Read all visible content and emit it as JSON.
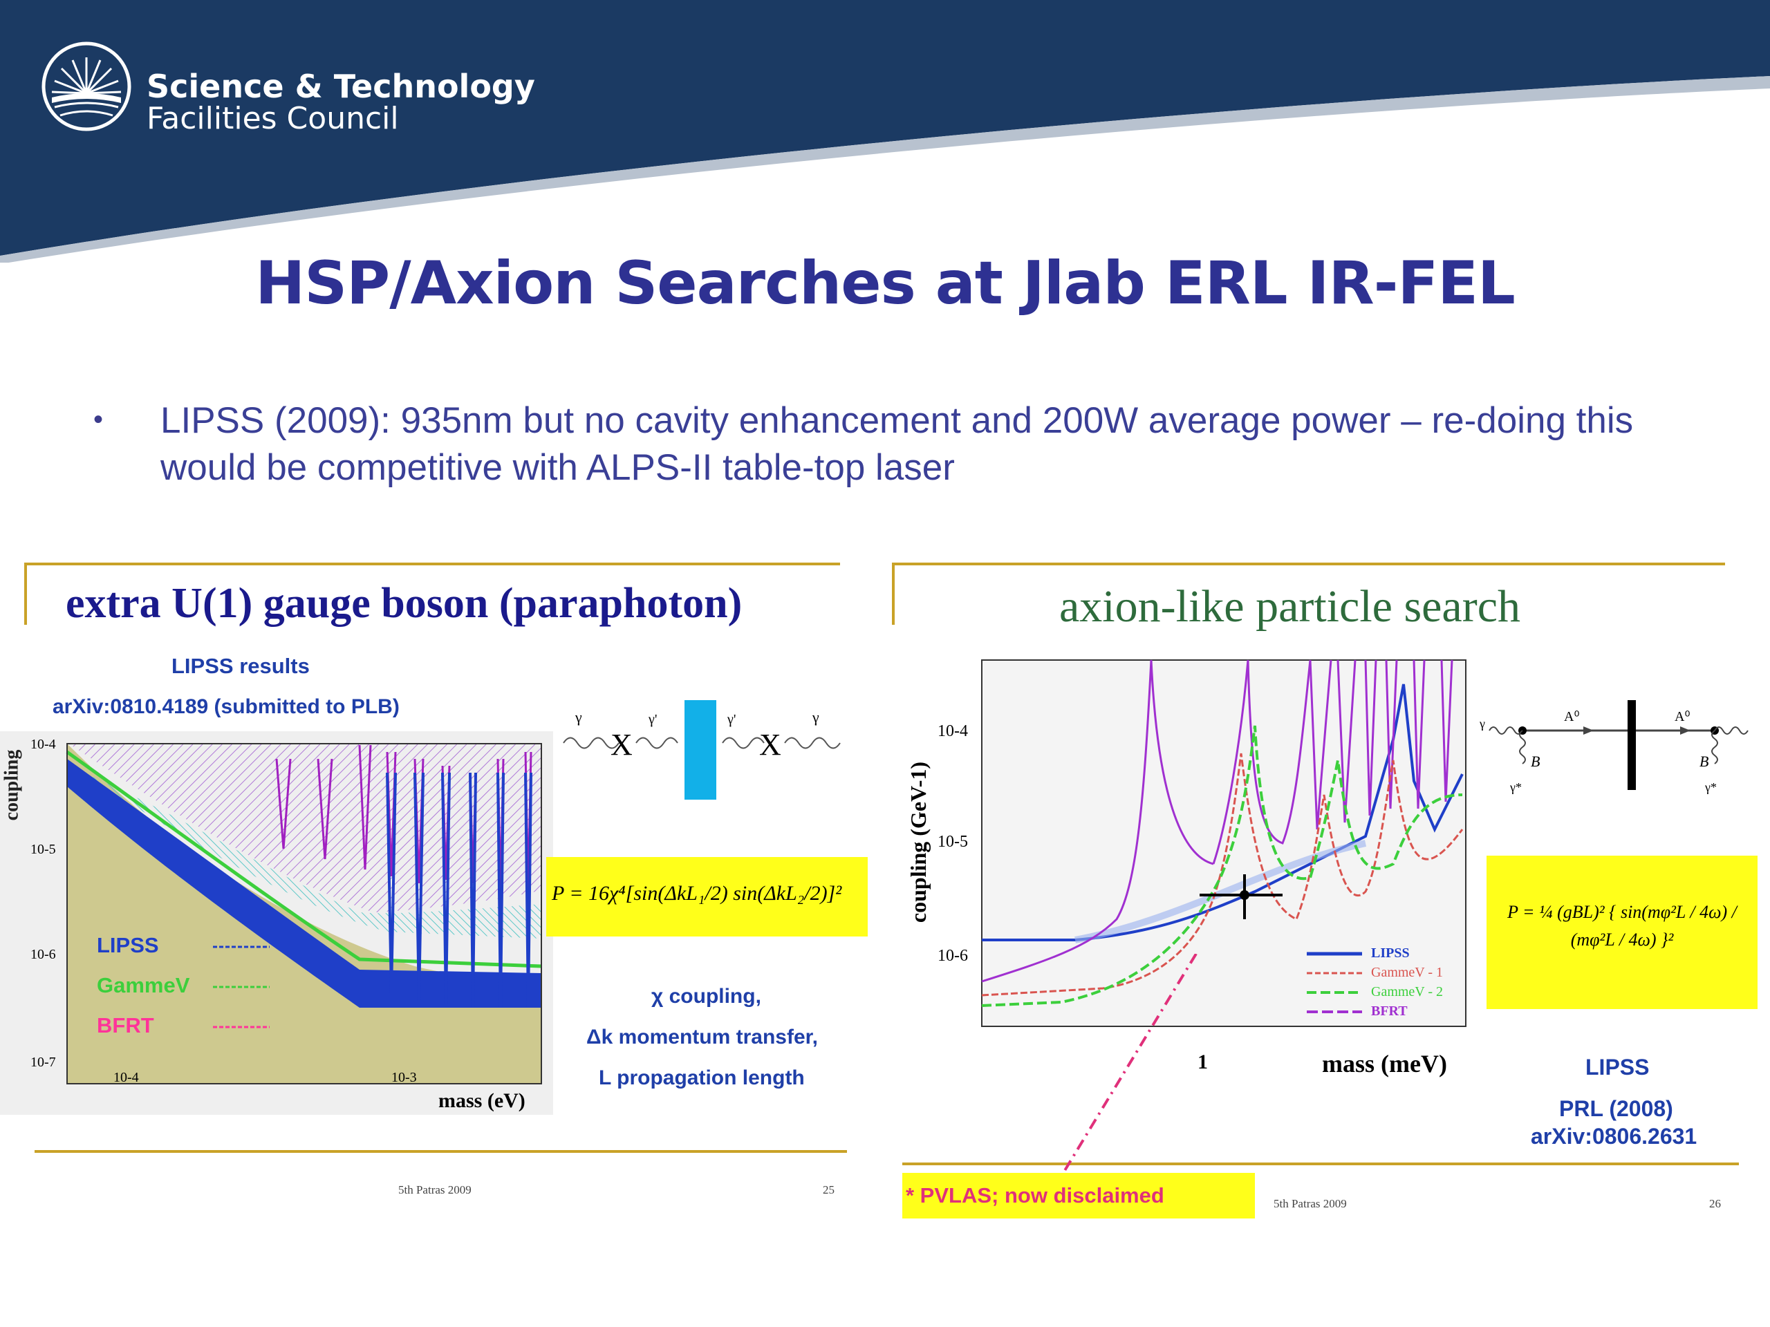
{
  "header": {
    "logo_line1": "Science & Technology",
    "logo_line2": "Facilities Council",
    "colors": {
      "navy": "#1b3a63",
      "title": "#2e3192"
    }
  },
  "title": "HSP/Axion Searches at Jlab ERL IR-FEL",
  "bullet": "LIPSS (2009): 935nm but no cavity enhancement and 200W average power – re-doing this would be competitive with ALPS-II table-top laser",
  "left_slide": {
    "heading": "extra U(1) gauge boson (paraphoton)",
    "results_label": "LIPSS results",
    "arxiv": "arXiv:0810.4189  (submitted to PLB)",
    "ylabel": "coupling",
    "xlabel": "mass (eV)",
    "yticks": [
      "10-4",
      "10-5",
      "10-6",
      "10-7"
    ],
    "xticks": [
      "10-4",
      "10-3"
    ],
    "legend": [
      {
        "name": "LIPSS",
        "color": "#1f3fc8"
      },
      {
        "name": "GammeV",
        "color": "#3ccf3c"
      },
      {
        "name": "BFRT",
        "color": "#ff3399"
      }
    ],
    "diagram_labels": [
      "γ",
      "X",
      "γ'",
      "γ'",
      "X",
      "γ"
    ],
    "formula": "P = 16χ⁴[sin(ΔkL₁/2) sin(ΔkL₂/2)]²",
    "notes": [
      "χ coupling,",
      "Δk momentum transfer,",
      "L propagation length"
    ],
    "footer": "5th Patras 2009",
    "page": "25"
  },
  "right_slide": {
    "heading": "axion-like particle search",
    "ylabel": "coupling  (GeV-1)",
    "xlabel": "mass (meV)",
    "xtick": "1",
    "yticks": [
      "10-4",
      "10-5",
      "10-6"
    ],
    "legend": [
      {
        "name": "LIPSS",
        "color": "#1f3fc8"
      },
      {
        "name": "GammeV - 1",
        "color": "#d9544f"
      },
      {
        "name": "GammeV - 2",
        "color": "#3ccf3c"
      },
      {
        "name": "BFRT",
        "color": "#a030d0"
      }
    ],
    "diagram_labels": [
      "γ",
      "A⁰",
      "A⁰",
      "B",
      "B",
      "γ*",
      "γ*"
    ],
    "formula": "P = ¼ (gBL)² { sin(mφ²L / 4ω) / (mφ²L / 4ω) }²",
    "lipss": "LIPSS",
    "prl": "PRL (2008)",
    "arxiv": "arXiv:0806.2631",
    "pvlas": "* PVLAS; now disclaimed",
    "footer": "5th Patras 2009",
    "page": "26"
  }
}
